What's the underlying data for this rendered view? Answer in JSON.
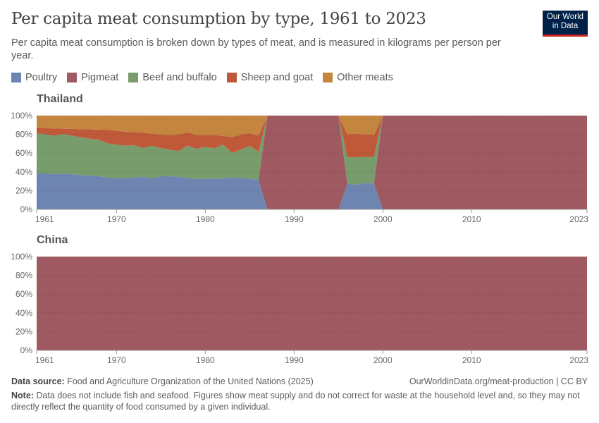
{
  "title": "Per capita meat consumption by type, 1961 to 2023",
  "subtitle": "Per capita meat consumption is broken down by types of meat, and is measured in kilograms per person per year.",
  "logo": {
    "line1": "Our World",
    "line2": "in Data"
  },
  "colors": {
    "Poultry": "#6d85b0",
    "Pigmeat": "#9e5961",
    "Beef and buffalo": "#789c6b",
    "Sheep and goat": "#c0593a",
    "Other meats": "#c4853f"
  },
  "legend": [
    "Poultry",
    "Pigmeat",
    "Beef and buffalo",
    "Sheep and goat",
    "Other meats"
  ],
  "chart_data": [
    {
      "type": "area",
      "stacked": "relative",
      "title": "Thailand",
      "x_start": 1961,
      "x_end": 2023,
      "xticks": [
        "1961",
        "1970",
        "1980",
        "1990",
        "2000",
        "2010",
        "2023"
      ],
      "yticks": [
        "0%",
        "20%",
        "40%",
        "60%",
        "80%",
        "100%"
      ],
      "ylim": [
        0,
        100
      ],
      "grid": "horizontal dashed",
      "series": [
        {
          "name": "Poultry",
          "values": [
            38.3,
            38.3,
            38,
            37.8,
            37.5,
            36.5,
            36,
            35.3,
            34,
            33.3,
            33,
            34.5,
            34.5,
            33.2,
            35.3,
            35.3,
            34.8,
            33.5,
            32.3,
            32.8,
            32.8,
            32.8,
            34,
            33.5,
            32.5,
            31.8,
            0,
            0,
            0,
            0,
            0,
            0,
            0,
            0,
            0,
            27.5,
            26.5,
            28,
            27.5,
            0,
            0,
            0,
            0,
            0,
            0,
            0,
            0,
            0,
            0,
            0,
            0,
            0,
            0,
            0,
            0,
            0,
            0,
            0,
            0,
            0,
            0,
            0,
            0
          ]
        },
        {
          "name": "Pigmeat",
          "values": [
            0,
            0,
            0,
            0,
            0,
            0,
            0,
            0,
            0,
            0,
            0,
            0,
            0,
            0,
            0,
            0,
            0,
            0,
            0,
            0,
            0,
            0,
            0,
            0,
            0,
            0,
            100,
            100,
            100,
            100,
            100,
            100,
            100,
            100,
            100,
            0,
            0,
            0,
            0,
            100,
            100,
            100,
            100,
            100,
            100,
            100,
            100,
            100,
            100,
            100,
            100,
            100,
            100,
            100,
            100,
            100,
            100,
            100,
            100,
            100,
            100,
            100,
            100
          ]
        },
        {
          "name": "Beef and buffalo",
          "values": [
            42.9,
            41.7,
            40.7,
            42.6,
            41,
            40.2,
            39.5,
            38.9,
            36.4,
            35.7,
            34.9,
            33.9,
            30.9,
            34.7,
            30.1,
            28.3,
            27.4,
            34.4,
            32.4,
            33.9,
            32.1,
            36.4,
            26.3,
            30.1,
            35.4,
            29.6,
            0,
            0,
            0,
            0,
            0,
            0,
            0,
            0,
            0,
            28,
            29,
            28,
            28.5,
            0,
            0,
            0,
            0,
            0,
            0,
            0,
            0,
            0,
            0,
            0,
            0,
            0,
            0,
            0,
            0,
            0,
            0,
            0,
            0,
            0,
            0,
            0,
            0
          ]
        },
        {
          "name": "Sheep and goat",
          "values": [
            6.2,
            6.8,
            7.5,
            5.6,
            7.3,
            8.8,
            9.8,
            10.9,
            14.5,
            14.9,
            15,
            13.9,
            16.3,
            12.8,
            14.3,
            15.6,
            17.5,
            14.3,
            14.5,
            12.5,
            14.3,
            9.2,
            16.9,
            16.1,
            13.3,
            17.3,
            0,
            0,
            0,
            0,
            0,
            0,
            0,
            0,
            0,
            24.5,
            25,
            24,
            23.5,
            0,
            0,
            0,
            0,
            0,
            0,
            0,
            0,
            0,
            0,
            0,
            0,
            0,
            0,
            0,
            0,
            0,
            0,
            0,
            0,
            0,
            0,
            0,
            0
          ]
        },
        {
          "name": "Other meats",
          "values": [
            12.6,
            13.2,
            13.8,
            14,
            14.2,
            14.5,
            14.7,
            14.9,
            15.1,
            16.1,
            17.1,
            17.7,
            18.3,
            19.3,
            20.3,
            20.8,
            20.3,
            17.8,
            20.8,
            20.8,
            20.8,
            21.6,
            22.8,
            20.3,
            18.8,
            21.3,
            0,
            0,
            0,
            0,
            0,
            0,
            0,
            0,
            0,
            20,
            19.5,
            20,
            20.5,
            0,
            0,
            0,
            0,
            0,
            0,
            0,
            0,
            0,
            0,
            0,
            0,
            0,
            0,
            0,
            0,
            0,
            0,
            0,
            0,
            0,
            0,
            0,
            0
          ]
        }
      ]
    },
    {
      "type": "area",
      "stacked": "relative",
      "title": "China",
      "x_start": 1961,
      "x_end": 2023,
      "xticks": [
        "1961",
        "1970",
        "1980",
        "1990",
        "2000",
        "2010",
        "2023"
      ],
      "yticks": [
        "0%",
        "20%",
        "40%",
        "60%",
        "80%",
        "100%"
      ],
      "ylim": [
        0,
        100
      ],
      "grid": "horizontal dashed",
      "series": [
        {
          "name": "Pigmeat",
          "values": [
            100,
            100,
            100,
            100,
            100,
            100,
            100,
            100,
            100,
            100,
            100,
            100,
            100,
            100,
            100,
            100,
            100,
            100,
            100,
            100,
            100,
            100,
            100,
            100,
            100,
            100,
            100,
            100,
            100,
            100,
            100,
            100,
            100,
            100,
            100,
            100,
            100,
            100,
            100,
            100,
            100,
            100,
            100,
            100,
            100,
            100,
            100,
            100,
            100,
            100,
            100,
            100,
            100,
            100,
            100,
            100,
            100,
            100,
            100,
            100,
            100,
            100,
            100
          ]
        }
      ]
    }
  ],
  "footer": {
    "source_label": "Data source:",
    "source": "Food and Agriculture Organization of the United Nations (2025)",
    "url": "OurWorldinData.org/meat-production | CC BY",
    "note_label": "Note:",
    "note": "Data does not include fish and seafood. Figures show meat supply and do not correct for waste at the household level and, so they may not directly reflect the quantity of food consumed by a given individual."
  }
}
